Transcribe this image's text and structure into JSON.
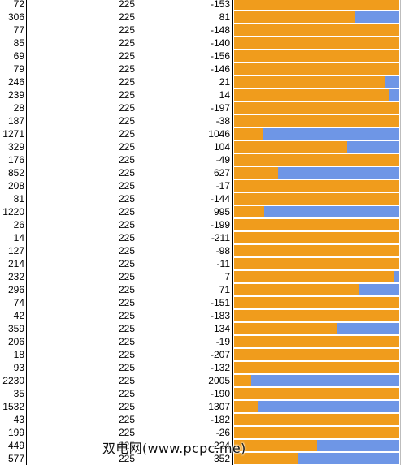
{
  "table": {
    "rows": [
      {
        "a": "72",
        "b": "225",
        "c": "-153",
        "ratio": 1.0
      },
      {
        "a": "306",
        "b": "225",
        "c": "81",
        "ratio": 0.735
      },
      {
        "a": "77",
        "b": "225",
        "c": "-148",
        "ratio": 1.0
      },
      {
        "a": "85",
        "b": "225",
        "c": "-140",
        "ratio": 1.0
      },
      {
        "a": "69",
        "b": "225",
        "c": "-156",
        "ratio": 1.0
      },
      {
        "a": "79",
        "b": "225",
        "c": "-146",
        "ratio": 1.0
      },
      {
        "a": "246",
        "b": "225",
        "c": "21",
        "ratio": 0.915
      },
      {
        "a": "239",
        "b": "225",
        "c": "14",
        "ratio": 0.941
      },
      {
        "a": "28",
        "b": "225",
        "c": "-197",
        "ratio": 1.0
      },
      {
        "a": "187",
        "b": "225",
        "c": "-38",
        "ratio": 1.0
      },
      {
        "a": "1271",
        "b": "225",
        "c": "1046",
        "ratio": 0.177
      },
      {
        "a": "329",
        "b": "225",
        "c": "104",
        "ratio": 0.684
      },
      {
        "a": "176",
        "b": "225",
        "c": "-49",
        "ratio": 1.0
      },
      {
        "a": "852",
        "b": "225",
        "c": "627",
        "ratio": 0.264
      },
      {
        "a": "208",
        "b": "225",
        "c": "-17",
        "ratio": 1.0
      },
      {
        "a": "81",
        "b": "225",
        "c": "-144",
        "ratio": 1.0
      },
      {
        "a": "1220",
        "b": "225",
        "c": "995",
        "ratio": 0.184
      },
      {
        "a": "26",
        "b": "225",
        "c": "-199",
        "ratio": 1.0
      },
      {
        "a": "14",
        "b": "225",
        "c": "-211",
        "ratio": 1.0
      },
      {
        "a": "127",
        "b": "225",
        "c": "-98",
        "ratio": 1.0
      },
      {
        "a": "214",
        "b": "225",
        "c": "-11",
        "ratio": 1.0
      },
      {
        "a": "232",
        "b": "225",
        "c": "7",
        "ratio": 0.97
      },
      {
        "a": "296",
        "b": "225",
        "c": "71",
        "ratio": 0.76
      },
      {
        "a": "74",
        "b": "225",
        "c": "-151",
        "ratio": 1.0
      },
      {
        "a": "42",
        "b": "225",
        "c": "-183",
        "ratio": 1.0
      },
      {
        "a": "359",
        "b": "225",
        "c": "134",
        "ratio": 0.627
      },
      {
        "a": "206",
        "b": "225",
        "c": "-19",
        "ratio": 1.0
      },
      {
        "a": "18",
        "b": "225",
        "c": "-207",
        "ratio": 1.0
      },
      {
        "a": "93",
        "b": "225",
        "c": "-132",
        "ratio": 1.0
      },
      {
        "a": "2230",
        "b": "225",
        "c": "2005",
        "ratio": 0.101
      },
      {
        "a": "35",
        "b": "225",
        "c": "-190",
        "ratio": 1.0
      },
      {
        "a": "1532",
        "b": "225",
        "c": "1307",
        "ratio": 0.147
      },
      {
        "a": "43",
        "b": "225",
        "c": "-182",
        "ratio": 1.0
      },
      {
        "a": "199",
        "b": "225",
        "c": "-26",
        "ratio": 1.0
      },
      {
        "a": "449",
        "b": "225",
        "c": "224",
        "ratio": 0.501
      },
      {
        "a": "577",
        "b": "225",
        "c": "352",
        "ratio": 0.39
      }
    ]
  },
  "colors": {
    "fill": "#f09c1c",
    "remainder": "#6e96e6"
  },
  "watermark": {
    "text": "双电网(www.pcpc.me)"
  }
}
